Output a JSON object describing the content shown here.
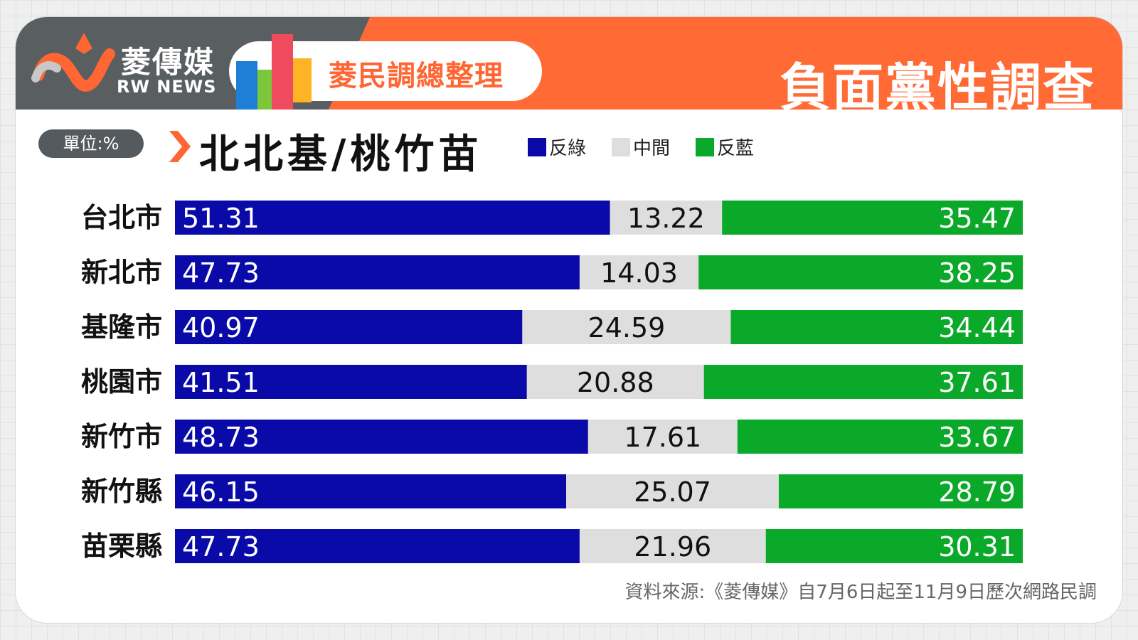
{
  "header": {
    "logo_zh": "菱傳媒",
    "logo_en": "RW NEWS",
    "badge": "菱民調總整理",
    "title": "負面黨性調查"
  },
  "unit": "單位:%",
  "region": "北北基/桃竹苗",
  "source": "資料來源:《菱傳媒》自7月6日起至11月9日歷次網路民調",
  "colors": {
    "header_dark": "#595e61",
    "header_orange": "#ff6a35",
    "series_anti_green": "#0a0aa8",
    "series_middle": "#dedede",
    "series_anti_blue": "#0ba92a"
  },
  "chart_data": {
    "type": "bar",
    "orientation": "horizontal",
    "stacked": true,
    "categories": [
      "台北市",
      "新北市",
      "基隆市",
      "桃園市",
      "新竹市",
      "新竹縣",
      "苗栗縣"
    ],
    "series": [
      {
        "name": "反綠",
        "color": "#0a0aa8",
        "values": [
          51.31,
          47.73,
          40.97,
          41.51,
          48.73,
          46.15,
          47.73
        ]
      },
      {
        "name": "中間",
        "color": "#dedede",
        "values": [
          13.22,
          14.03,
          24.59,
          20.88,
          17.61,
          25.07,
          21.96
        ]
      },
      {
        "name": "反藍",
        "color": "#0ba92a",
        "values": [
          35.47,
          38.25,
          34.44,
          37.61,
          33.67,
          28.79,
          30.31
        ]
      }
    ],
    "xlim": [
      0,
      100
    ],
    "legend_position": "top",
    "grid": false
  }
}
